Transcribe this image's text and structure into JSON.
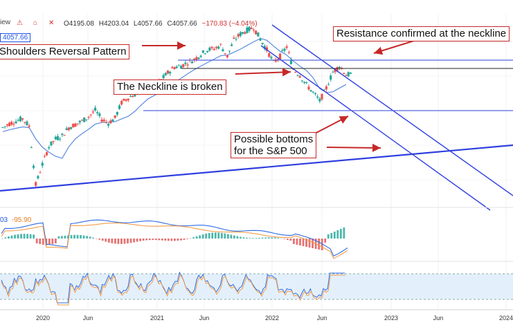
{
  "header": {
    "title_fragment": "iew",
    "open": "O4195.08",
    "high": "H4203.04",
    "low": "L4057.66",
    "close": "C4057.66",
    "change": "−170.83 (−4.04%)",
    "last_price": "4057.66",
    "icons": [
      "alert-icon",
      "lock-icon",
      "close-icon"
    ]
  },
  "annotations": {
    "pattern": "Shoulders Reversal Pattern",
    "neckline": "The Neckline is broken",
    "resistance": "Resistance confirmed at the neckline",
    "bottoms_line1": "Possible bottoms",
    "bottoms_line2": "for the S&P 500"
  },
  "macd": {
    "value_a": "03",
    "value_b": "-95.90"
  },
  "colors": {
    "up": "#26a69a",
    "down": "#ef5350",
    "ma": "#5a8ae0",
    "trend": "#2f3fe0",
    "hline": "#5566dd",
    "macd_line": "#2e6be6",
    "signal_line": "#f39c4a",
    "annotation": "#c62828",
    "rsi_band": "#e3f0fb"
  },
  "chart_data": {
    "type": "candlestick",
    "x_ticks": [
      "2020",
      "Jun",
      "2021",
      "Jun",
      "2022",
      "Jun",
      "2023",
      "Jun",
      "2024"
    ],
    "price_series": [
      3230,
      3290,
      3330,
      3370,
      3250,
      2330,
      2650,
      2930,
      3050,
      3100,
      3230,
      3280,
      3330,
      3400,
      3500,
      3360,
      3300,
      3380,
      3620,
      3700,
      3750,
      3810,
      3850,
      3900,
      3980,
      4090,
      4180,
      4200,
      4250,
      4300,
      4380,
      4450,
      4470,
      4520,
      4350,
      4600,
      4700,
      4760,
      4800,
      4620,
      4450,
      4250,
      4350,
      4500,
      4150,
      4050,
      3900,
      3780,
      3650,
      3850,
      4100,
      4200,
      4060
    ],
    "series": [
      {
        "name": "S&P 500 price"
      }
    ],
    "levels": {
      "neckline_upper": 4300,
      "neckline_lower": 4150,
      "support": 3770
    },
    "macd_value": -95.9
  }
}
